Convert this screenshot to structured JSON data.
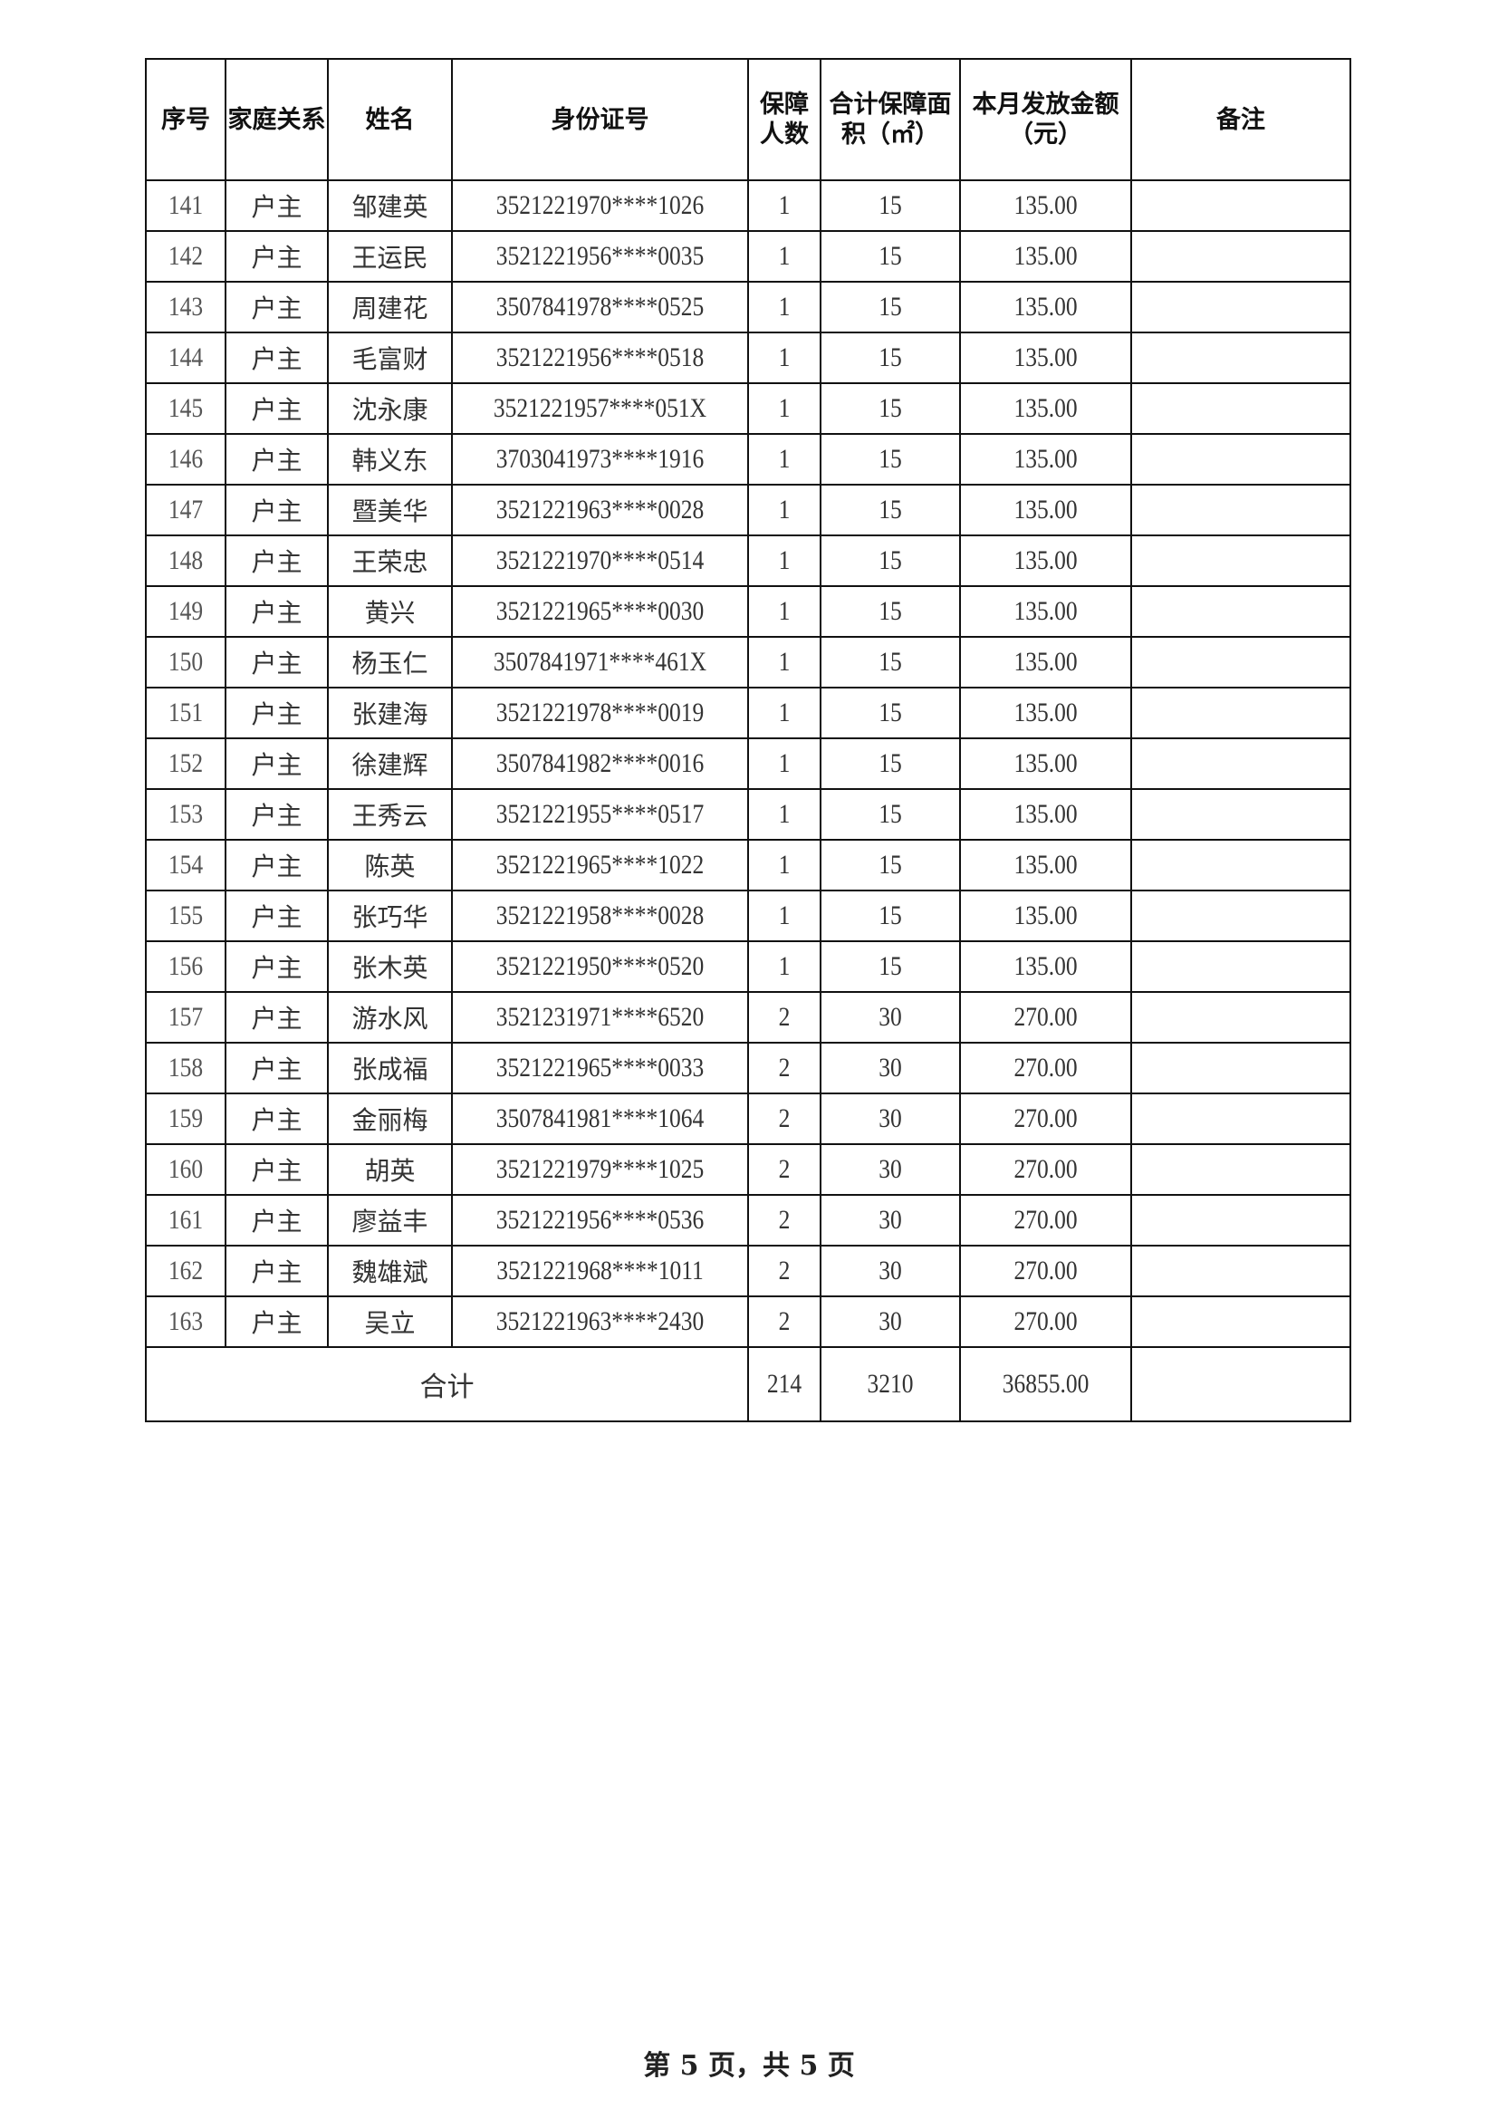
{
  "table": {
    "headers": {
      "seq": "序号",
      "relation": "家庭关系",
      "name": "姓名",
      "id_number": "身份证号",
      "persons": "保障人数",
      "area": "合计保障面积（㎡）",
      "amount": "本月发放金额（元）",
      "remark": "备注"
    },
    "rows": [
      [
        "141",
        "户主",
        "邹建英",
        "3521221970****1026",
        "1",
        "15",
        "135.00",
        ""
      ],
      [
        "142",
        "户主",
        "王运民",
        "3521221956****0035",
        "1",
        "15",
        "135.00",
        ""
      ],
      [
        "143",
        "户主",
        "周建花",
        "3507841978****0525",
        "1",
        "15",
        "135.00",
        ""
      ],
      [
        "144",
        "户主",
        "毛富财",
        "3521221956****0518",
        "1",
        "15",
        "135.00",
        ""
      ],
      [
        "145",
        "户主",
        "沈永康",
        "3521221957****051X",
        "1",
        "15",
        "135.00",
        ""
      ],
      [
        "146",
        "户主",
        "韩义东",
        "3703041973****1916",
        "1",
        "15",
        "135.00",
        ""
      ],
      [
        "147",
        "户主",
        "暨美华",
        "3521221963****0028",
        "1",
        "15",
        "135.00",
        ""
      ],
      [
        "148",
        "户主",
        "王荣忠",
        "3521221970****0514",
        "1",
        "15",
        "135.00",
        ""
      ],
      [
        "149",
        "户主",
        "黄兴",
        "3521221965****0030",
        "1",
        "15",
        "135.00",
        ""
      ],
      [
        "150",
        "户主",
        "杨玉仁",
        "3507841971****461X",
        "1",
        "15",
        "135.00",
        ""
      ],
      [
        "151",
        "户主",
        "张建海",
        "3521221978****0019",
        "1",
        "15",
        "135.00",
        ""
      ],
      [
        "152",
        "户主",
        "徐建辉",
        "3507841982****0016",
        "1",
        "15",
        "135.00",
        ""
      ],
      [
        "153",
        "户主",
        "王秀云",
        "3521221955****0517",
        "1",
        "15",
        "135.00",
        ""
      ],
      [
        "154",
        "户主",
        "陈英",
        "3521221965****1022",
        "1",
        "15",
        "135.00",
        ""
      ],
      [
        "155",
        "户主",
        "张巧华",
        "3521221958****0028",
        "1",
        "15",
        "135.00",
        ""
      ],
      [
        "156",
        "户主",
        "张木英",
        "3521221950****0520",
        "1",
        "15",
        "135.00",
        ""
      ],
      [
        "157",
        "户主",
        "游水风",
        "3521231971****6520",
        "2",
        "30",
        "270.00",
        ""
      ],
      [
        "158",
        "户主",
        "张成福",
        "3521221965****0033",
        "2",
        "30",
        "270.00",
        ""
      ],
      [
        "159",
        "户主",
        "金丽梅",
        "3507841981****1064",
        "2",
        "30",
        "270.00",
        ""
      ],
      [
        "160",
        "户主",
        "胡英",
        "3521221979****1025",
        "2",
        "30",
        "270.00",
        ""
      ],
      [
        "161",
        "户主",
        "廖益丰",
        "3521221956****0536",
        "2",
        "30",
        "270.00",
        ""
      ],
      [
        "162",
        "户主",
        "魏雄斌",
        "3521221968****1011",
        "2",
        "30",
        "270.00",
        ""
      ],
      [
        "163",
        "户主",
        "吴立",
        "3521221963****2430",
        "2",
        "30",
        "270.00",
        ""
      ]
    ],
    "total": {
      "label": "合计",
      "persons": "214",
      "area": "3210",
      "amount": "36855.00",
      "remark": ""
    }
  },
  "footer": {
    "page_label": "第 5 页，共 5 页"
  }
}
